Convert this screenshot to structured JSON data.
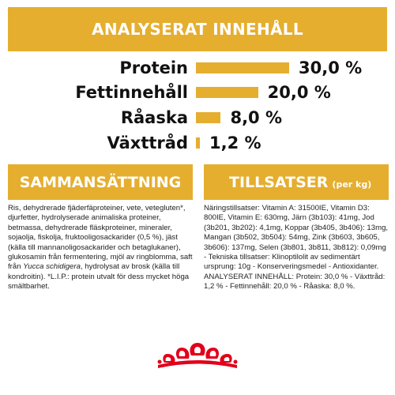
{
  "analysis": {
    "title": "ANALYSERAT INNEHÅLL",
    "nutrients": [
      {
        "name": "Protein",
        "value_label": "30,0 %",
        "value": 30.0
      },
      {
        "name": "Fettinnehåll",
        "value_label": "20,0 %",
        "value": 20.0
      },
      {
        "name": "Råaska",
        "value_label": "8,0 %",
        "value": 8.0
      },
      {
        "name": "Växttråd",
        "value_label": "1,2 %",
        "value": 1.2
      }
    ]
  },
  "composition": {
    "title": "SAMMANSÄTTNING",
    "text_before_italic": "Ris, dehydrerade fjäderfäproteiner, vete, vetegluten*, djurfetter, hydrolyserade animaliska proteiner, betmassa, dehydrerade fläskproteiner, mineraler, sojaolja, fiskolja, fruktooligosackarider (0,5 %), jäst (källa till mannanoligosackarider och betaglukaner), glukosamin från fermentering, mjöl av ringblomma, saft från ",
    "italic_text": "Yucca schidigera",
    "text_after_italic": ", hydrolysat av brosk (källa till kondroitin). *L.I.P.: protein utvalt för dess mycket höga smältbarhet."
  },
  "additives": {
    "title": "TILLSATSER",
    "subtitle": "(per kg)",
    "text": "Näringstillsatser: Vitamin A: 31500IE, Vitamin D3: 800IE, Vitamin E: 630mg, Järn (3b103): 41mg, Jod (3b201, 3b202): 4,1mg, Koppar (3b405, 3b406): 13mg, Mangan (3b502, 3b504): 54mg, Zink (3b603, 3b605, 3b606): 137mg, Selen (3b801, 3b811, 3b812): 0,09mg - Tekniska tillsatser: Klinoptilolit av sedimentärt ursprung: 10g - Konserveringsmedel - Antioxidanter. ANALYSERAT INNEHÅLL: Protein: 30,0 % - Växttråd: 1,2 % - Fettinnehåll: 20,0 % - Råaska: 8,0 %."
  },
  "colors": {
    "accent": "#e5ae2f",
    "logo_red": "#e2001a"
  },
  "logo": {
    "icon": "royal-canin-crown-icon"
  }
}
